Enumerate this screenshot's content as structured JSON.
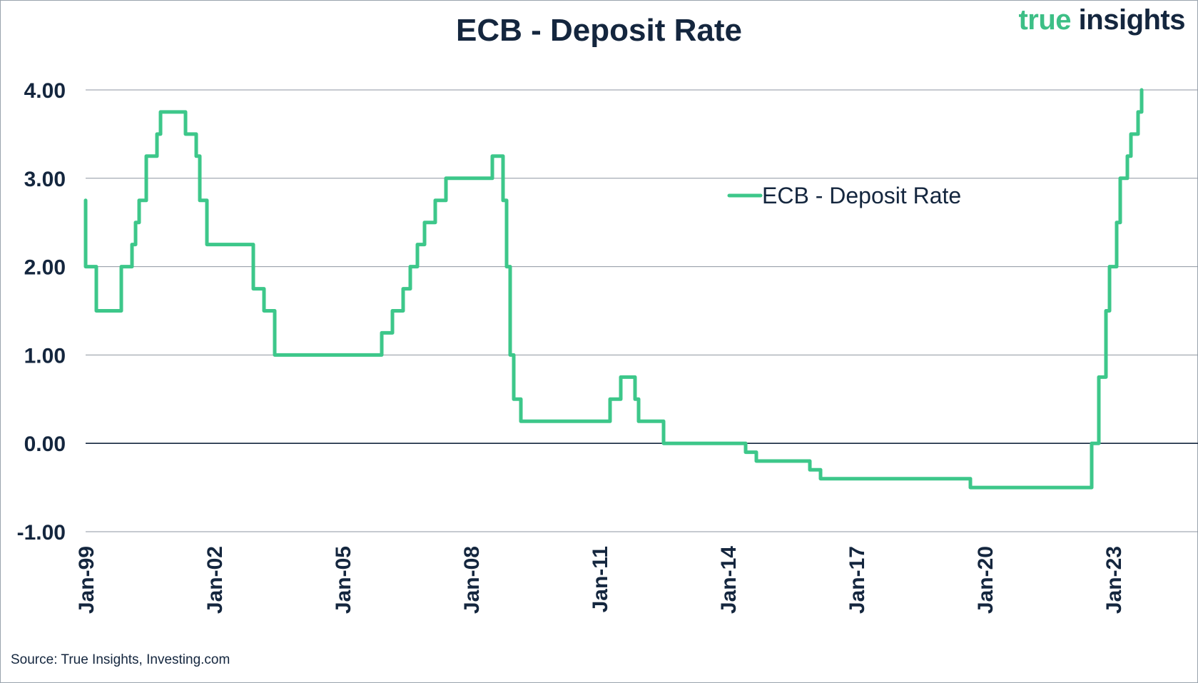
{
  "header": {
    "title": "ECB - Deposit Rate",
    "logo_part1": "true",
    "logo_part2": "insights"
  },
  "footer": {
    "source": "Source: True Insights, Investing.com"
  },
  "colors": {
    "series": "#3dc78a",
    "text": "#14263e",
    "logo_green": "#3dbf86",
    "grid": "#8e96a0",
    "zero_line": "#14263e"
  },
  "chart_data": {
    "type": "line",
    "title": "ECB - Deposit Rate",
    "xlabel": "",
    "ylabel": "",
    "ylim": [
      -1.0,
      4.0
    ],
    "xlim": [
      "1999-01",
      "2024-09"
    ],
    "y_ticks": [
      "4.00",
      "3.00",
      "2.00",
      "1.00",
      "0.00",
      "-1.00"
    ],
    "y_tick_values": [
      4,
      3,
      2,
      1,
      0,
      -1
    ],
    "x_ticks": [
      "Jan-99",
      "Jan-02",
      "Jan-05",
      "Jan-08",
      "Jan-11",
      "Jan-14",
      "Jan-17",
      "Jan-20",
      "Jan-23"
    ],
    "x_tick_dates": [
      "1999-01",
      "2002-01",
      "2005-01",
      "2008-01",
      "2011-01",
      "2014-01",
      "2017-01",
      "2020-01",
      "2023-01"
    ],
    "grid": true,
    "legend": "upper-center-right",
    "series": [
      {
        "name": "ECB - Deposit Rate",
        "points": [
          [
            "1999-01",
            2.75
          ],
          [
            "1999-01",
            2.0
          ],
          [
            "1999-04",
            2.0
          ],
          [
            "1999-04",
            1.5
          ],
          [
            "1999-11",
            1.5
          ],
          [
            "1999-11",
            2.0
          ],
          [
            "2000-02",
            2.0
          ],
          [
            "2000-02",
            2.25
          ],
          [
            "2000-03",
            2.25
          ],
          [
            "2000-03",
            2.5
          ],
          [
            "2000-04",
            2.5
          ],
          [
            "2000-04",
            2.75
          ],
          [
            "2000-06",
            2.75
          ],
          [
            "2000-06",
            3.25
          ],
          [
            "2000-09",
            3.25
          ],
          [
            "2000-09",
            3.5
          ],
          [
            "2000-10",
            3.5
          ],
          [
            "2000-10",
            3.75
          ],
          [
            "2001-05",
            3.75
          ],
          [
            "2001-05",
            3.5
          ],
          [
            "2001-08",
            3.5
          ],
          [
            "2001-08",
            3.25
          ],
          [
            "2001-09",
            3.25
          ],
          [
            "2001-09",
            2.75
          ],
          [
            "2001-11",
            2.75
          ],
          [
            "2001-11",
            2.25
          ],
          [
            "2002-12",
            2.25
          ],
          [
            "2002-12",
            1.75
          ],
          [
            "2003-03",
            1.75
          ],
          [
            "2003-03",
            1.5
          ],
          [
            "2003-06",
            1.5
          ],
          [
            "2003-06",
            1.0
          ],
          [
            "2005-12",
            1.0
          ],
          [
            "2005-12",
            1.25
          ],
          [
            "2006-03",
            1.25
          ],
          [
            "2006-03",
            1.5
          ],
          [
            "2006-06",
            1.5
          ],
          [
            "2006-06",
            1.75
          ],
          [
            "2006-08",
            1.75
          ],
          [
            "2006-08",
            2.0
          ],
          [
            "2006-10",
            2.0
          ],
          [
            "2006-10",
            2.25
          ],
          [
            "2006-12",
            2.25
          ],
          [
            "2006-12",
            2.5
          ],
          [
            "2007-03",
            2.5
          ],
          [
            "2007-03",
            2.75
          ],
          [
            "2007-06",
            2.75
          ],
          [
            "2007-06",
            3.0
          ],
          [
            "2008-07",
            3.0
          ],
          [
            "2008-07",
            3.25
          ],
          [
            "2008-10",
            3.25
          ],
          [
            "2008-10",
            2.75
          ],
          [
            "2008-11",
            2.75
          ],
          [
            "2008-11",
            2.0
          ],
          [
            "2008-12",
            2.0
          ],
          [
            "2008-12",
            1.0
          ],
          [
            "2009-01",
            1.0
          ],
          [
            "2009-01",
            0.5
          ],
          [
            "2009-03",
            0.5
          ],
          [
            "2009-03",
            0.25
          ],
          [
            "2011-04",
            0.25
          ],
          [
            "2011-04",
            0.5
          ],
          [
            "2011-07",
            0.5
          ],
          [
            "2011-07",
            0.75
          ],
          [
            "2011-11",
            0.75
          ],
          [
            "2011-11",
            0.5
          ],
          [
            "2011-12",
            0.5
          ],
          [
            "2011-12",
            0.25
          ],
          [
            "2012-07",
            0.25
          ],
          [
            "2012-07",
            0.0
          ],
          [
            "2014-06",
            0.0
          ],
          [
            "2014-06",
            -0.1
          ],
          [
            "2014-09",
            -0.1
          ],
          [
            "2014-09",
            -0.2
          ],
          [
            "2015-12",
            -0.2
          ],
          [
            "2015-12",
            -0.3
          ],
          [
            "2016-03",
            -0.3
          ],
          [
            "2016-03",
            -0.4
          ],
          [
            "2019-09",
            -0.4
          ],
          [
            "2019-09",
            -0.5
          ],
          [
            "2022-07",
            -0.5
          ],
          [
            "2022-07",
            0.0
          ],
          [
            "2022-09",
            0.0
          ],
          [
            "2022-09",
            0.75
          ],
          [
            "2022-11",
            0.75
          ],
          [
            "2022-11",
            1.5
          ],
          [
            "2022-12",
            1.5
          ],
          [
            "2022-12",
            2.0
          ],
          [
            "2023-02",
            2.0
          ],
          [
            "2023-02",
            2.5
          ],
          [
            "2023-03",
            2.5
          ],
          [
            "2023-03",
            3.0
          ],
          [
            "2023-05",
            3.0
          ],
          [
            "2023-05",
            3.25
          ],
          [
            "2023-06",
            3.25
          ],
          [
            "2023-06",
            3.5
          ],
          [
            "2023-08",
            3.5
          ],
          [
            "2023-08",
            3.75
          ],
          [
            "2023-09",
            3.75
          ],
          [
            "2023-09",
            4.0
          ]
        ]
      }
    ]
  }
}
